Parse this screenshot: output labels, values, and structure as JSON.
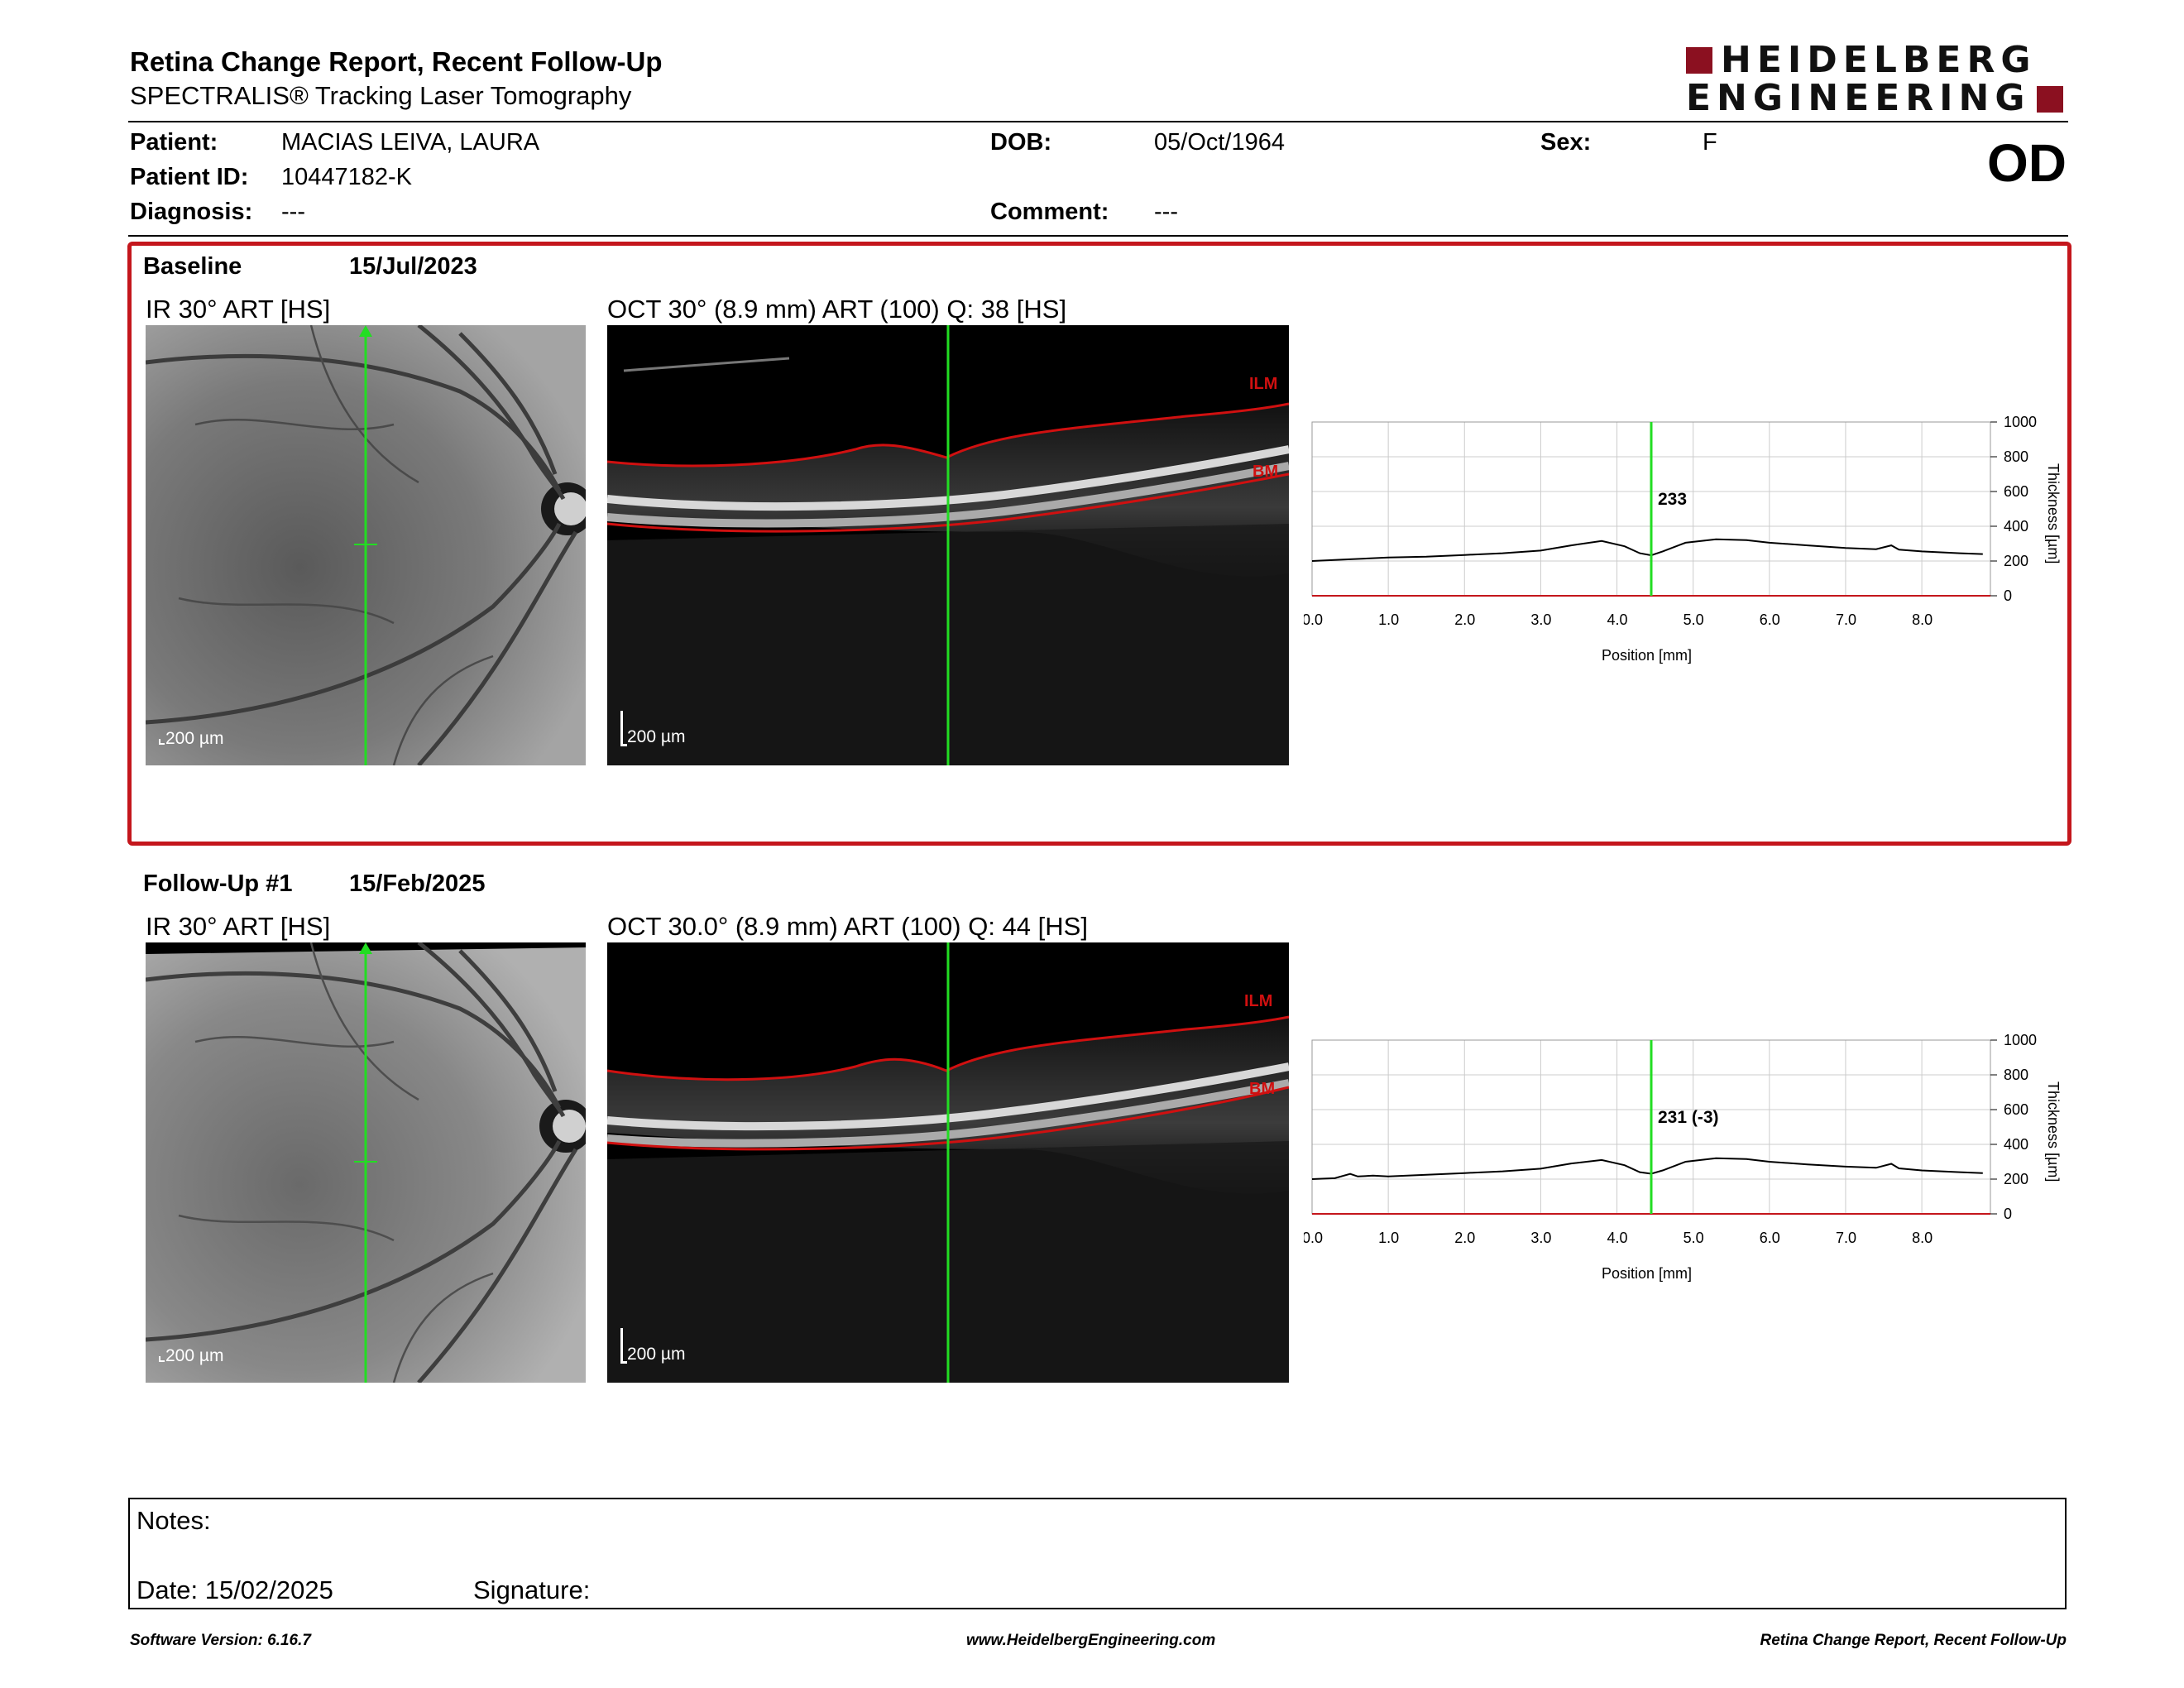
{
  "header": {
    "title": "Retina Change Report, Recent Follow-Up",
    "subtitle": "SPECTRALIS® Tracking Laser Tomography",
    "logo_line1": "HEIDELBERG",
    "logo_line2": "ENGINEERING",
    "eye": "OD"
  },
  "patient": {
    "patient_label": "Patient:",
    "patient_value": "MACIAS LEIVA, LAURA",
    "id_label": "Patient ID:",
    "id_value": "10447182-K",
    "diagnosis_label": "Diagnosis:",
    "diagnosis_value": "---",
    "dob_label": "DOB:",
    "dob_value": "05/Oct/1964",
    "comment_label": "Comment:",
    "comment_value": "---",
    "sex_label": "Sex:",
    "sex_value": "F"
  },
  "baseline": {
    "label": "Baseline",
    "date": "15/Jul/2023",
    "ir_title": "IR 30° ART [HS]",
    "oct_title": "OCT 30° (8.9 mm) ART (100) Q: 38 [HS]",
    "scale_ir": "200 µm",
    "scale_oct": "200 µm",
    "ilm_label": "ILM",
    "bm_label": "BM"
  },
  "followup": {
    "label": "Follow-Up #1",
    "date": "15/Feb/2025",
    "ir_title": "IR 30° ART [HS]",
    "oct_title": "OCT 30.0° (8.9 mm) ART (100) Q: 44 [HS]",
    "scale_ir": "200 µm",
    "scale_oct": "200 µm",
    "ilm_label": "ILM",
    "bm_label": "BM"
  },
  "colors": {
    "accent_red": "#c4161c",
    "logo_red": "#8b1020",
    "green_marker": "#22dd22",
    "segmentation_red": "#d01010"
  },
  "chart_data": [
    {
      "type": "line",
      "xlabel": "Position [mm]",
      "ylabel": "Thickness [µm]",
      "xlim": [
        0,
        8.9
      ],
      "ylim": [
        0,
        1000
      ],
      "x_ticks": [
        "0.0",
        "1.0",
        "2.0",
        "3.0",
        "4.0",
        "5.0",
        "6.0",
        "7.0",
        "8.0"
      ],
      "y_ticks": [
        "0",
        "200",
        "400",
        "600",
        "800",
        "1000"
      ],
      "grid": true,
      "marker_x": 4.45,
      "marker_label": "233",
      "x": [
        0.0,
        0.5,
        1.0,
        1.5,
        2.0,
        2.5,
        3.0,
        3.4,
        3.8,
        4.1,
        4.3,
        4.45,
        4.6,
        4.9,
        5.3,
        5.7,
        6.0,
        6.5,
        7.0,
        7.4,
        7.6,
        7.7,
        8.0,
        8.5,
        8.8
      ],
      "y": [
        200,
        210,
        220,
        225,
        235,
        245,
        260,
        290,
        315,
        285,
        245,
        233,
        255,
        305,
        325,
        320,
        305,
        290,
        275,
        268,
        290,
        265,
        255,
        245,
        240
      ]
    },
    {
      "type": "line",
      "xlabel": "Position [mm]",
      "ylabel": "Thickness [µm]",
      "xlim": [
        0,
        8.9
      ],
      "ylim": [
        0,
        1000
      ],
      "x_ticks": [
        "0.0",
        "1.0",
        "2.0",
        "3.0",
        "4.0",
        "5.0",
        "6.0",
        "7.0",
        "8.0"
      ],
      "y_ticks": [
        "0",
        "200",
        "400",
        "600",
        "800",
        "1000"
      ],
      "grid": true,
      "marker_x": 4.45,
      "marker_label": "231 (-3)",
      "x": [
        0.0,
        0.3,
        0.5,
        0.6,
        0.8,
        1.0,
        1.5,
        2.0,
        2.5,
        3.0,
        3.4,
        3.8,
        4.1,
        4.3,
        4.45,
        4.6,
        4.9,
        5.3,
        5.7,
        6.0,
        6.5,
        7.0,
        7.4,
        7.6,
        7.7,
        8.0,
        8.5,
        8.8
      ],
      "y": [
        200,
        205,
        230,
        215,
        220,
        215,
        225,
        235,
        245,
        260,
        290,
        310,
        280,
        240,
        231,
        250,
        300,
        320,
        315,
        300,
        285,
        272,
        265,
        288,
        262,
        250,
        240,
        235
      ]
    }
  ],
  "notes": {
    "notes_label": "Notes:",
    "date_label": "Date: 15/02/2025",
    "signature_label": "Signature:"
  },
  "footer": {
    "left": "Software Version: 6.16.7",
    "center": "www.HeidelbergEngineering.com",
    "right": "Retina Change Report, Recent Follow-Up"
  }
}
